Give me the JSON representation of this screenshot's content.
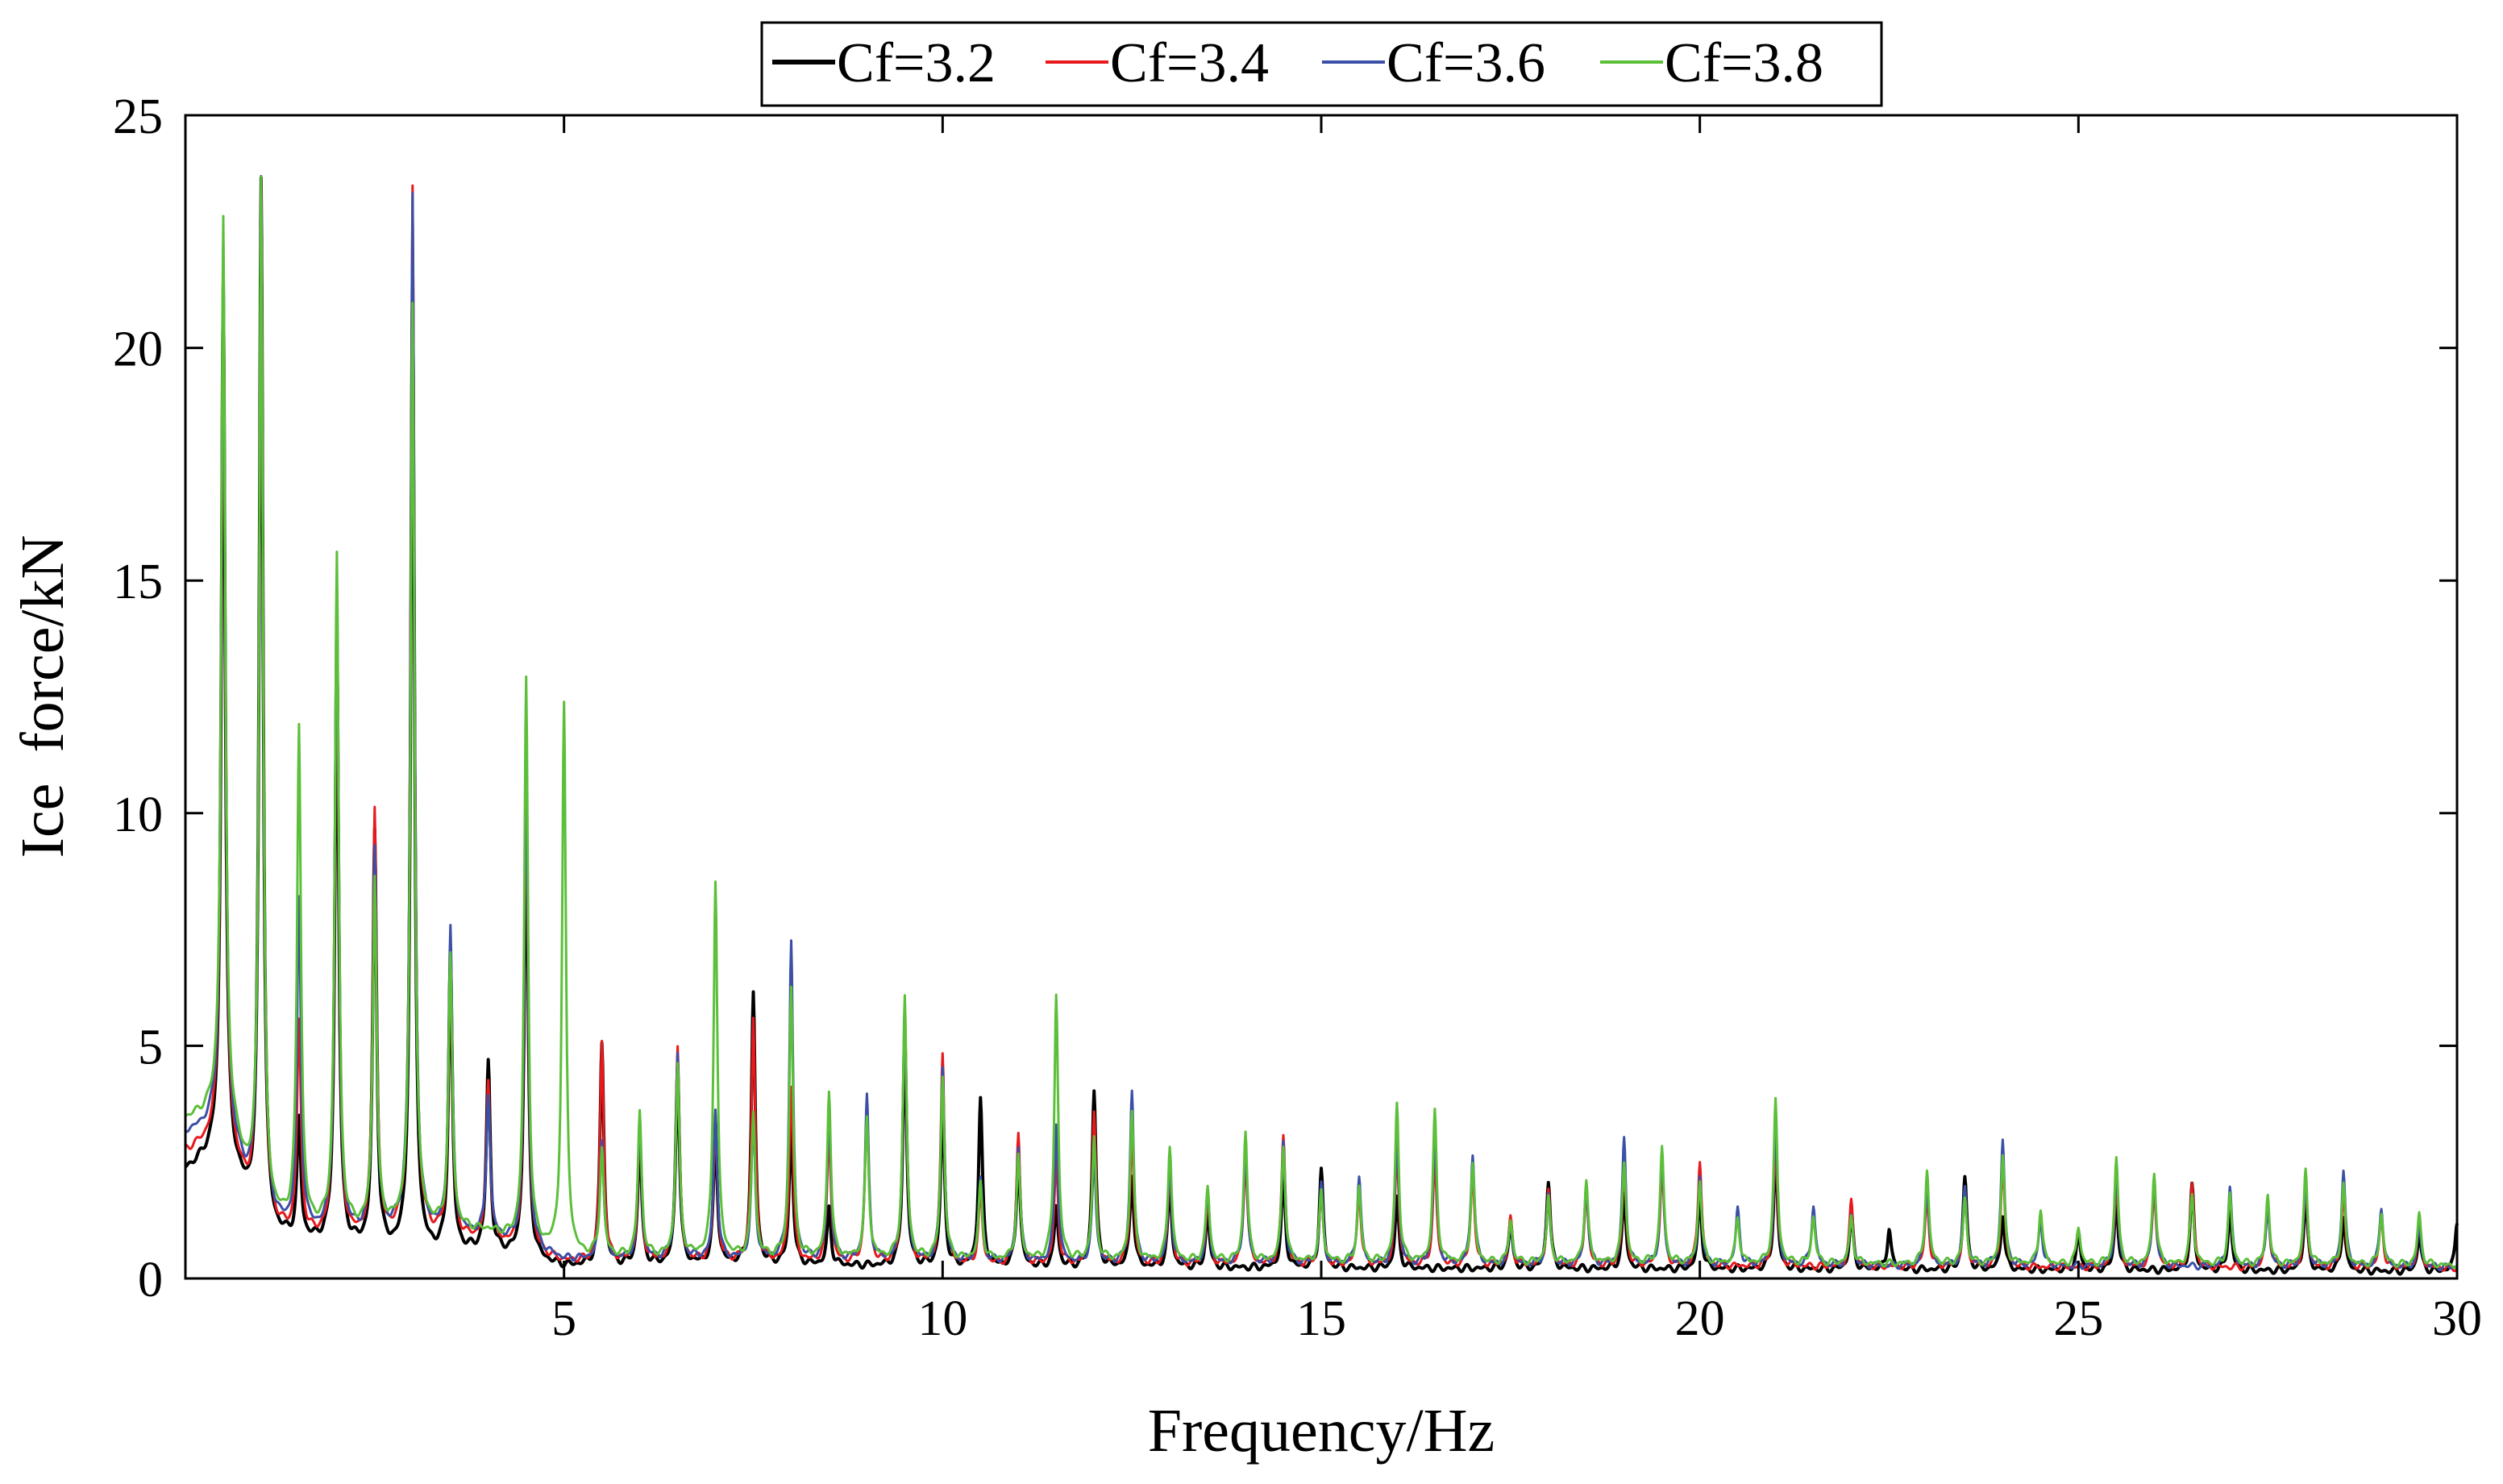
{
  "chart_data": {
    "type": "line",
    "title": "",
    "xlabel": "Frequency/Hz",
    "ylabel": "Ice  force/kN",
    "xlim": [
      0,
      30
    ],
    "ylim": [
      0,
      25
    ],
    "xticks": [
      5,
      10,
      15,
      20,
      25,
      30
    ],
    "yticks": [
      0,
      5,
      10,
      15,
      20,
      25
    ],
    "grid": false,
    "legend_position": "top-center-outside",
    "series": [
      {
        "name": "Cf=3.2",
        "color": "#000000",
        "baseline": [
          [
            0,
            2.3
          ],
          [
            0.5,
            2.8
          ],
          [
            1.0,
            0.9
          ],
          [
            2.0,
            0.7
          ],
          [
            3.0,
            0.5
          ],
          [
            4.0,
            0.6
          ],
          [
            5.0,
            0.25
          ],
          [
            7.0,
            0.3
          ],
          [
            10.0,
            0.25
          ],
          [
            15.0,
            0.22
          ],
          [
            20.0,
            0.2
          ],
          [
            25.0,
            0.18
          ],
          [
            30.0,
            0.15
          ]
        ],
        "peaks": [
          [
            0.5,
            18.6
          ],
          [
            1.0,
            22.7
          ],
          [
            1.5,
            2.5
          ],
          [
            2.0,
            13.0
          ],
          [
            2.5,
            8.9
          ],
          [
            3.0,
            21.0
          ],
          [
            3.5,
            6.3
          ],
          [
            4.0,
            4.0
          ],
          [
            4.5,
            9.5
          ],
          [
            5.5,
            4.8
          ],
          [
            6.0,
            2.7
          ],
          [
            6.5,
            4.3
          ],
          [
            7.0,
            2.8
          ],
          [
            7.5,
            5.8
          ],
          [
            8.0,
            3.0
          ],
          [
            8.5,
            1.2
          ],
          [
            9.5,
            5.0
          ],
          [
            10.0,
            3.5
          ],
          [
            10.5,
            3.6
          ],
          [
            11.0,
            2.4
          ],
          [
            11.5,
            1.3
          ],
          [
            12.0,
            3.8
          ],
          [
            12.5,
            2.0
          ],
          [
            13.0,
            1.8
          ],
          [
            13.5,
            1.2
          ],
          [
            14.5,
            2.0
          ],
          [
            15.0,
            2.1
          ],
          [
            16.0,
            1.5
          ],
          [
            17.5,
            1.0
          ],
          [
            18.0,
            1.9
          ],
          [
            19.0,
            1.6
          ],
          [
            20.0,
            1.6
          ],
          [
            21.0,
            2.5
          ],
          [
            22.0,
            1.2
          ],
          [
            22.5,
            0.9
          ],
          [
            23.5,
            2.0
          ],
          [
            24.0,
            1.2
          ],
          [
            25.0,
            0.8
          ],
          [
            25.5,
            1.5
          ],
          [
            26.5,
            1.8
          ],
          [
            27.0,
            1.3
          ],
          [
            28.0,
            1.6
          ],
          [
            28.5,
            1.2
          ],
          [
            29.5,
            0.8
          ],
          [
            30.0,
            1.1
          ]
        ]
      },
      {
        "name": "Cf=3.4",
        "color": "#e8191c",
        "baseline": [
          [
            0,
            2.7
          ],
          [
            0.5,
            3.0
          ],
          [
            1.0,
            1.0
          ],
          [
            2.0,
            0.8
          ],
          [
            3.0,
            0.9
          ],
          [
            4.0,
            0.8
          ],
          [
            5.0,
            0.35
          ],
          [
            7.0,
            0.35
          ],
          [
            10.0,
            0.3
          ],
          [
            15.0,
            0.28
          ],
          [
            20.0,
            0.26
          ],
          [
            25.0,
            0.24
          ],
          [
            30.0,
            0.22
          ]
        ],
        "peaks": [
          [
            0.5,
            18.8
          ],
          [
            1.0,
            22.6
          ],
          [
            1.5,
            4.5
          ],
          [
            2.0,
            13.5
          ],
          [
            2.5,
            9.2
          ],
          [
            3.0,
            22.5
          ],
          [
            3.5,
            6.0
          ],
          [
            4.0,
            3.4
          ],
          [
            4.5,
            10.0
          ],
          [
            5.5,
            4.7
          ],
          [
            6.0,
            2.8
          ],
          [
            6.5,
            4.6
          ],
          [
            7.0,
            3.0
          ],
          [
            7.5,
            5.2
          ],
          [
            8.0,
            3.8
          ],
          [
            8.5,
            2.8
          ],
          [
            9.0,
            3.3
          ],
          [
            9.5,
            5.4
          ],
          [
            10.0,
            4.5
          ],
          [
            10.5,
            1.5
          ],
          [
            11.0,
            2.8
          ],
          [
            11.5,
            2.2
          ],
          [
            12.0,
            3.2
          ],
          [
            12.5,
            2.8
          ],
          [
            13.0,
            2.0
          ],
          [
            13.5,
            1.4
          ],
          [
            14.0,
            2.3
          ],
          [
            14.5,
            2.8
          ],
          [
            15.0,
            1.6
          ],
          [
            15.5,
            1.6
          ],
          [
            16.0,
            2.4
          ],
          [
            16.5,
            2.2
          ],
          [
            17.0,
            2.0
          ],
          [
            17.5,
            1.0
          ],
          [
            18.0,
            1.6
          ],
          [
            18.5,
            1.6
          ],
          [
            19.0,
            2.1
          ],
          [
            19.5,
            2.1
          ],
          [
            20.0,
            2.3
          ],
          [
            21.0,
            2.6
          ],
          [
            22.0,
            1.4
          ],
          [
            23.0,
            1.5
          ],
          [
            23.5,
            1.6
          ],
          [
            24.0,
            2.2
          ],
          [
            25.5,
            1.8
          ],
          [
            26.0,
            1.7
          ],
          [
            26.5,
            1.8
          ],
          [
            27.5,
            1.4
          ],
          [
            28.0,
            1.7
          ],
          [
            28.5,
            1.6
          ],
          [
            29.0,
            1.1
          ],
          [
            29.5,
            1.0
          ]
        ]
      },
      {
        "name": "Cf=3.6",
        "color": "#3b4fa6",
        "baseline": [
          [
            0,
            3.1
          ],
          [
            0.5,
            3.3
          ],
          [
            1.0,
            1.1
          ],
          [
            2.0,
            0.9
          ],
          [
            3.0,
            1.0
          ],
          [
            4.0,
            0.9
          ],
          [
            5.0,
            0.4
          ],
          [
            7.0,
            0.4
          ],
          [
            10.0,
            0.35
          ],
          [
            15.0,
            0.3
          ],
          [
            20.0,
            0.28
          ],
          [
            25.0,
            0.26
          ],
          [
            30.0,
            0.24
          ]
        ],
        "peaks": [
          [
            0.5,
            18.9
          ],
          [
            1.0,
            22.5
          ],
          [
            1.5,
            7.0
          ],
          [
            2.0,
            14.0
          ],
          [
            2.5,
            8.2
          ],
          [
            3.0,
            22.2
          ],
          [
            3.5,
            6.5
          ],
          [
            4.0,
            3.0
          ],
          [
            4.5,
            10.5
          ],
          [
            5.5,
            2.6
          ],
          [
            6.0,
            2.9
          ],
          [
            6.5,
            4.4
          ],
          [
            7.0,
            3.2
          ],
          [
            7.5,
            3.0
          ],
          [
            8.0,
            6.8
          ],
          [
            8.5,
            3.2
          ],
          [
            9.0,
            3.5
          ],
          [
            9.5,
            5.3
          ],
          [
            10.0,
            4.2
          ],
          [
            10.5,
            1.8
          ],
          [
            11.0,
            2.5
          ],
          [
            11.5,
            3.0
          ],
          [
            12.0,
            2.2
          ],
          [
            12.5,
            3.7
          ],
          [
            13.0,
            2.1
          ],
          [
            13.5,
            1.5
          ],
          [
            14.0,
            2.5
          ],
          [
            14.5,
            2.6
          ],
          [
            15.0,
            1.7
          ],
          [
            15.5,
            1.9
          ],
          [
            16.0,
            2.8
          ],
          [
            16.5,
            2.8
          ],
          [
            17.0,
            2.4
          ],
          [
            17.5,
            0.9
          ],
          [
            18.0,
            1.5
          ],
          [
            18.5,
            1.7
          ],
          [
            19.0,
            2.7
          ],
          [
            19.5,
            2.3
          ],
          [
            20.0,
            1.9
          ],
          [
            20.5,
            1.2
          ],
          [
            21.0,
            3.0
          ],
          [
            21.5,
            1.3
          ],
          [
            22.0,
            1.1
          ],
          [
            23.0,
            1.8
          ],
          [
            23.5,
            1.7
          ],
          [
            24.0,
            2.7
          ],
          [
            24.5,
            1.0
          ],
          [
            25.5,
            2.0
          ],
          [
            26.0,
            1.9
          ],
          [
            27.0,
            1.7
          ],
          [
            27.5,
            1.3
          ],
          [
            28.0,
            1.8
          ],
          [
            28.5,
            2.1
          ],
          [
            29.0,
            1.3
          ],
          [
            29.5,
            0.9
          ]
        ]
      },
      {
        "name": "Cf=3.8",
        "color": "#5cbf3a",
        "baseline": [
          [
            0,
            3.4
          ],
          [
            0.5,
            3.6
          ],
          [
            1.0,
            1.2
          ],
          [
            2.0,
            1.0
          ],
          [
            3.0,
            1.1
          ],
          [
            4.0,
            1.0
          ],
          [
            5.0,
            0.45
          ],
          [
            7.0,
            0.45
          ],
          [
            10.0,
            0.4
          ],
          [
            15.0,
            0.35
          ],
          [
            20.0,
            0.32
          ],
          [
            25.0,
            0.3
          ],
          [
            30.0,
            0.28
          ]
        ],
        "peaks": [
          [
            0.5,
            19.1
          ],
          [
            1.0,
            22.4
          ],
          [
            1.5,
            10.7
          ],
          [
            2.0,
            14.5
          ],
          [
            2.5,
            7.5
          ],
          [
            3.0,
            19.8
          ],
          [
            3.5,
            5.8
          ],
          [
            4.5,
            12.1
          ],
          [
            5.0,
            11.8
          ],
          [
            5.5,
            2.3
          ],
          [
            6.0,
            3.1
          ],
          [
            6.5,
            4.1
          ],
          [
            7.0,
            8.1
          ],
          [
            7.5,
            3.1
          ],
          [
            8.0,
            5.8
          ],
          [
            8.5,
            3.6
          ],
          [
            9.0,
            3.0
          ],
          [
            9.5,
            5.6
          ],
          [
            10.0,
            3.9
          ],
          [
            10.5,
            1.6
          ],
          [
            11.0,
            2.2
          ],
          [
            11.5,
            5.7
          ],
          [
            12.0,
            2.6
          ],
          [
            12.5,
            3.2
          ],
          [
            13.0,
            2.5
          ],
          [
            13.5,
            1.6
          ],
          [
            14.0,
            2.8
          ],
          [
            14.5,
            2.5
          ],
          [
            15.0,
            1.5
          ],
          [
            15.5,
            1.6
          ],
          [
            16.0,
            3.4
          ],
          [
            16.5,
            3.2
          ],
          [
            17.0,
            2.1
          ],
          [
            17.5,
            0.9
          ],
          [
            18.0,
            1.4
          ],
          [
            18.5,
            1.8
          ],
          [
            19.0,
            2.2
          ],
          [
            19.5,
            2.5
          ],
          [
            20.0,
            1.8
          ],
          [
            20.5,
            1.0
          ],
          [
            21.0,
            3.5
          ],
          [
            21.5,
            1.0
          ],
          [
            22.0,
            1.0
          ],
          [
            23.0,
            2.0
          ],
          [
            23.5,
            1.4
          ],
          [
            24.0,
            2.3
          ],
          [
            24.5,
            1.2
          ],
          [
            25.0,
            0.8
          ],
          [
            25.5,
            2.3
          ],
          [
            26.0,
            2.0
          ],
          [
            26.5,
            1.5
          ],
          [
            27.0,
            1.5
          ],
          [
            27.5,
            1.5
          ],
          [
            28.0,
            2.0
          ],
          [
            28.5,
            1.7
          ],
          [
            29.0,
            1.1
          ],
          [
            29.5,
            1.1
          ]
        ]
      }
    ]
  }
}
